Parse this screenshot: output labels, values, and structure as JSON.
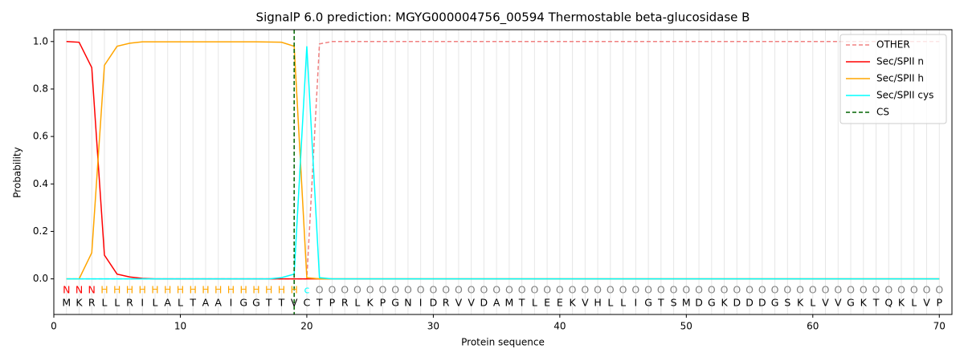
{
  "chart_data": {
    "type": "line",
    "title": "SignalP 6.0 prediction: MGYG000004756_00594 Thermostable beta-glucosidase B",
    "xlabel": "Protein sequence",
    "ylabel": "Probability",
    "xlim": [
      0,
      71
    ],
    "ylim": [
      -0.15,
      1.05
    ],
    "xticks": [
      0,
      10,
      20,
      30,
      40,
      50,
      60,
      70
    ],
    "yticks": [
      {
        "value": 0,
        "label": "0.0"
      },
      0.2,
      0.4,
      0.6,
      0.8,
      {
        "value": 1,
        "label": "1.0"
      }
    ],
    "grid": true,
    "legend": "upper right",
    "x": [
      1,
      2,
      3,
      4,
      5,
      6,
      7,
      8,
      9,
      10,
      11,
      12,
      13,
      14,
      15,
      16,
      17,
      18,
      19,
      20,
      21,
      22,
      23,
      24,
      25,
      26,
      27,
      28,
      29,
      30,
      31,
      32,
      33,
      34,
      35,
      36,
      37,
      38,
      39,
      40,
      41,
      42,
      43,
      44,
      45,
      46,
      47,
      48,
      49,
      50,
      51,
      52,
      53,
      54,
      55,
      56,
      57,
      58,
      59,
      60,
      61,
      62,
      63,
      64,
      65,
      66,
      67,
      68,
      69,
      70
    ],
    "sequence": [
      "M",
      "K",
      "R",
      "L",
      "L",
      "R",
      "I",
      "L",
      "A",
      "L",
      "T",
      "A",
      "A",
      "I",
      "G",
      "G",
      "T",
      "T",
      "V",
      "C",
      "T",
      "P",
      "R",
      "L",
      "K",
      "P",
      "G",
      "N",
      "I",
      "D",
      "R",
      "V",
      "V",
      "D",
      "A",
      "M",
      "T",
      "L",
      "E",
      "E",
      "K",
      "V",
      "H",
      "L",
      "L",
      "I",
      "G",
      "T",
      "S",
      "M",
      "D",
      "G",
      "K",
      "D",
      "D",
      "D",
      "G",
      "S",
      "K",
      "L",
      "V",
      "V",
      "G",
      "K",
      "T",
      "Q",
      "K",
      "L",
      "V",
      "P"
    ],
    "labels": [
      "N",
      "N",
      "N",
      "H",
      "H",
      "H",
      "H",
      "H",
      "H",
      "H",
      "H",
      "H",
      "H",
      "H",
      "H",
      "H",
      "H",
      "H",
      "H",
      "c",
      "O",
      "O",
      "O",
      "O",
      "O",
      "O",
      "O",
      "O",
      "O",
      "O",
      "O",
      "O",
      "O",
      "O",
      "O",
      "O",
      "O",
      "O",
      "O",
      "O",
      "O",
      "O",
      "O",
      "O",
      "O",
      "O",
      "O",
      "O",
      "O",
      "O",
      "O",
      "O",
      "O",
      "O",
      "O",
      "O",
      "O",
      "O",
      "O",
      "O",
      "O",
      "O",
      "O",
      "O",
      "O",
      "O",
      "O",
      "O",
      "O",
      "O"
    ],
    "label_colors": {
      "N": "#ff0000",
      "H": "#ffa500",
      "c": "#00ffff",
      "O": "#808080"
    },
    "series": [
      {
        "name": "OTHER",
        "color": "#f08080",
        "dashed": true,
        "values": [
          0,
          0,
          0,
          0,
          0,
          0,
          0,
          0,
          0,
          0,
          0,
          0,
          0,
          0,
          0,
          0,
          0,
          0,
          0,
          0,
          0.99,
          1,
          1,
          1,
          1,
          1,
          1,
          1,
          1,
          1,
          1,
          1,
          1,
          1,
          1,
          1,
          1,
          1,
          1,
          1,
          1,
          1,
          1,
          1,
          1,
          1,
          1,
          1,
          1,
          1,
          1,
          1,
          1,
          1,
          1,
          1,
          1,
          1,
          1,
          1,
          1,
          1,
          1,
          1,
          1,
          1,
          1,
          1,
          1,
          1
        ]
      },
      {
        "name": "Sec/SPII n",
        "color": "#ff0000",
        "values": [
          1,
          0.997,
          0.89,
          0.1,
          0.02,
          0.008,
          0.002,
          0,
          0,
          0,
          0,
          0,
          0,
          0,
          0,
          0,
          0,
          0,
          0,
          0,
          0,
          0,
          0,
          0,
          0,
          0,
          0,
          0,
          0,
          0,
          0,
          0,
          0,
          0,
          0,
          0,
          0,
          0,
          0,
          0,
          0,
          0,
          0,
          0,
          0,
          0,
          0,
          0,
          0,
          0,
          0,
          0,
          0,
          0,
          0,
          0,
          0,
          0,
          0,
          0,
          0,
          0,
          0,
          0,
          0,
          0,
          0,
          0,
          0,
          0
        ]
      },
      {
        "name": "Sec/SPII h",
        "color": "#ffa500",
        "values": [
          0,
          0,
          0.11,
          0.9,
          0.98,
          0.993,
          0.999,
          0.999,
          0.999,
          0.999,
          0.999,
          0.999,
          0.999,
          0.999,
          0.999,
          0.999,
          0.998,
          0.997,
          0.98,
          0.005,
          0,
          0,
          0,
          0,
          0,
          0,
          0,
          0,
          0,
          0,
          0,
          0,
          0,
          0,
          0,
          0,
          0,
          0,
          0,
          0,
          0,
          0,
          0,
          0,
          0,
          0,
          0,
          0,
          0,
          0,
          0,
          0,
          0,
          0,
          0,
          0,
          0,
          0,
          0,
          0,
          0,
          0,
          0,
          0,
          0,
          0,
          0,
          0,
          0,
          0
        ]
      },
      {
        "name": "Sec/SPII cys",
        "color": "#00ffff",
        "values": [
          0,
          0,
          0,
          0,
          0,
          0,
          0,
          0,
          0,
          0,
          0,
          0,
          0,
          0,
          0,
          0,
          0,
          0.005,
          0.02,
          0.98,
          0.005,
          0,
          0,
          0,
          0,
          0,
          0,
          0,
          0,
          0,
          0,
          0,
          0,
          0,
          0,
          0,
          0,
          0,
          0,
          0,
          0,
          0,
          0,
          0,
          0,
          0,
          0,
          0,
          0,
          0,
          0,
          0,
          0,
          0,
          0,
          0,
          0,
          0,
          0,
          0,
          0,
          0,
          0,
          0,
          0,
          0,
          0,
          0,
          0,
          0
        ]
      }
    ],
    "cs": {
      "name": "CS",
      "x": 19,
      "color": "#006400"
    }
  }
}
